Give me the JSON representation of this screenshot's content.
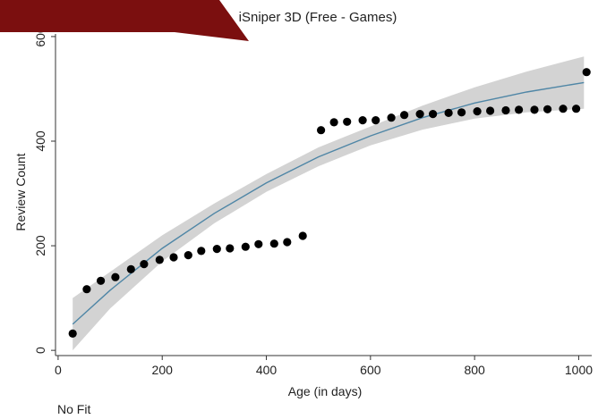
{
  "colors": {
    "overlay": "#7b0f0f",
    "ci_band": "#d3d3d3",
    "fit_line": "#4f86a6",
    "points": "#000000",
    "axis": "#333333"
  },
  "note": "No Fit",
  "chart_data": {
    "type": "scatter",
    "title": "iSniper 3D (Free - Games)",
    "xlabel": "Age (in days)",
    "ylabel": "Review Count",
    "xlim": [
      -5,
      1025
    ],
    "ylim": [
      -10,
      605
    ],
    "xticks": [
      0,
      200,
      400,
      600,
      800,
      1000
    ],
    "yticks": [
      0,
      200,
      400,
      600
    ],
    "xtick_labels": [
      "0",
      "200",
      "400",
      "600",
      "800",
      "1000"
    ],
    "ytick_labels": [
      "0",
      "200",
      "400",
      "600"
    ],
    "grid": false,
    "legend": "none",
    "series": [
      {
        "kind": "points",
        "x": [
          28,
          55,
          82,
          110,
          140,
          165,
          195,
          222,
          250,
          275,
          305,
          330,
          360,
          385,
          415,
          440,
          470,
          505,
          530,
          555,
          585,
          610,
          640,
          665,
          695,
          720,
          750,
          775,
          805,
          830,
          860,
          885,
          915,
          940,
          970,
          995,
          1015
        ],
        "y": [
          32,
          117,
          133,
          140,
          155,
          165,
          173,
          178,
          182,
          190,
          194,
          195,
          198,
          203,
          204,
          207,
          219,
          421,
          436,
          437,
          440,
          440,
          445,
          450,
          452,
          452,
          454,
          455,
          457,
          458,
          459,
          460,
          460,
          461,
          462,
          462,
          532
        ]
      },
      {
        "kind": "fit_line",
        "x": [
          28,
          100,
          200,
          300,
          400,
          500,
          600,
          700,
          800,
          900,
          1010
        ],
        "y": [
          50,
          115,
          195,
          262,
          320,
          370,
          410,
          445,
          473,
          494,
          512
        ]
      },
      {
        "kind": "ci_band",
        "x": [
          28,
          100,
          200,
          300,
          400,
          500,
          600,
          700,
          800,
          900,
          1010
        ],
        "lower": [
          0,
          80,
          170,
          243,
          303,
          352,
          392,
          422,
          443,
          455,
          462
        ],
        "upper": [
          100,
          150,
          220,
          281,
          337,
          388,
          428,
          468,
          503,
          533,
          562
        ]
      }
    ]
  }
}
